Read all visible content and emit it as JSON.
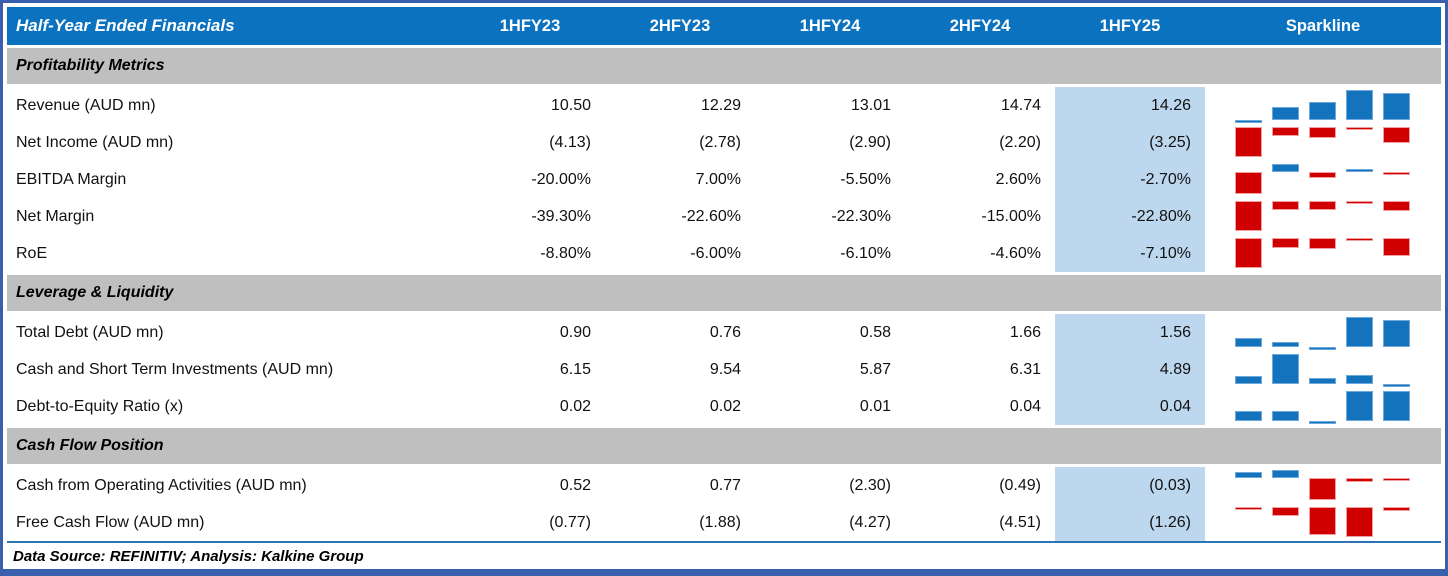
{
  "chart_data": {
    "type": "table",
    "title": "Half-Year Ended Financials",
    "period_columns": [
      "1HFY23",
      "2HFY23",
      "1HFY24",
      "2HFY24",
      "1HFY25"
    ],
    "sparkline_column_label": "Sparkline",
    "highlighted_column": "1HFY25",
    "sparkline_style": {
      "type": "bar",
      "positive_color": "#1473BD",
      "negative_color": "#D00000",
      "scaling": "min-to-max per row"
    },
    "sections": [
      {
        "label": "Profitability Metrics",
        "rows": [
          {
            "label": "Revenue (AUD mn)",
            "display": [
              "10.50",
              "12.29",
              "13.01",
              "14.74",
              "14.26"
            ],
            "values": [
              10.5,
              12.29,
              13.01,
              14.74,
              14.26
            ]
          },
          {
            "label": "Net Income (AUD mn)",
            "display": [
              "(4.13)",
              "(2.78)",
              "(2.90)",
              "(2.20)",
              "(3.25)"
            ],
            "values": [
              -4.13,
              -2.78,
              -2.9,
              -2.2,
              -3.25
            ]
          },
          {
            "label": "EBITDA Margin",
            "display": [
              "-20.00%",
              "7.00%",
              "-5.50%",
              "2.60%",
              "-2.70%"
            ],
            "values": [
              -20.0,
              7.0,
              -5.5,
              2.6,
              -2.7
            ]
          },
          {
            "label": "Net Margin",
            "display": [
              "-39.30%",
              "-22.60%",
              "-22.30%",
              "-15.00%",
              "-22.80%"
            ],
            "values": [
              -39.3,
              -22.6,
              -22.3,
              -15.0,
              -22.8
            ]
          },
          {
            "label": "RoE",
            "display": [
              "-8.80%",
              "-6.00%",
              "-6.10%",
              "-4.60%",
              "-7.10%"
            ],
            "values": [
              -8.8,
              -6.0,
              -6.1,
              -4.6,
              -7.1
            ]
          }
        ]
      },
      {
        "label": "Leverage & Liquidity",
        "rows": [
          {
            "label": "Total Debt (AUD mn)",
            "display": [
              "0.90",
              "0.76",
              "0.58",
              "1.66",
              "1.56"
            ],
            "values": [
              0.9,
              0.76,
              0.58,
              1.66,
              1.56
            ]
          },
          {
            "label": "Cash and Short Term Investments (AUD mn)",
            "display": [
              "6.15",
              "9.54",
              "5.87",
              "6.31",
              "4.89"
            ],
            "values": [
              6.15,
              9.54,
              5.87,
              6.31,
              4.89
            ]
          },
          {
            "label": "Debt-to-Equity Ratio (x)",
            "display": [
              "0.02",
              "0.02",
              "0.01",
              "0.04",
              "0.04"
            ],
            "values": [
              0.02,
              0.02,
              0.01,
              0.04,
              0.04
            ]
          }
        ]
      },
      {
        "label": "Cash Flow Position",
        "rows": [
          {
            "label": "Cash from Operating Activities (AUD mn)",
            "display": [
              "0.52",
              "0.77",
              "(2.30)",
              "(0.49)",
              "(0.03)"
            ],
            "values": [
              0.52,
              0.77,
              -2.3,
              -0.49,
              -0.03
            ]
          },
          {
            "label": "Free Cash Flow (AUD mn)",
            "display": [
              "(0.77)",
              "(1.88)",
              "(4.27)",
              "(4.51)",
              "(1.26)"
            ],
            "values": [
              -0.77,
              -1.88,
              -4.27,
              -4.51,
              -1.26
            ]
          }
        ]
      }
    ]
  },
  "footer": {
    "text": "Data Source: REFINITIV; Analysis: Kalkine Group"
  },
  "colors": {
    "outer_border": "#3A60AD",
    "header_bg": "#0B72C0",
    "header_text": "#FFFFFF",
    "section_bg": "#BFBFBF",
    "highlight_bg": "#BDD7EE",
    "sparkline_positive": "#1473BD",
    "sparkline_negative": "#D00000",
    "footer_separator": "#2E75B6"
  }
}
